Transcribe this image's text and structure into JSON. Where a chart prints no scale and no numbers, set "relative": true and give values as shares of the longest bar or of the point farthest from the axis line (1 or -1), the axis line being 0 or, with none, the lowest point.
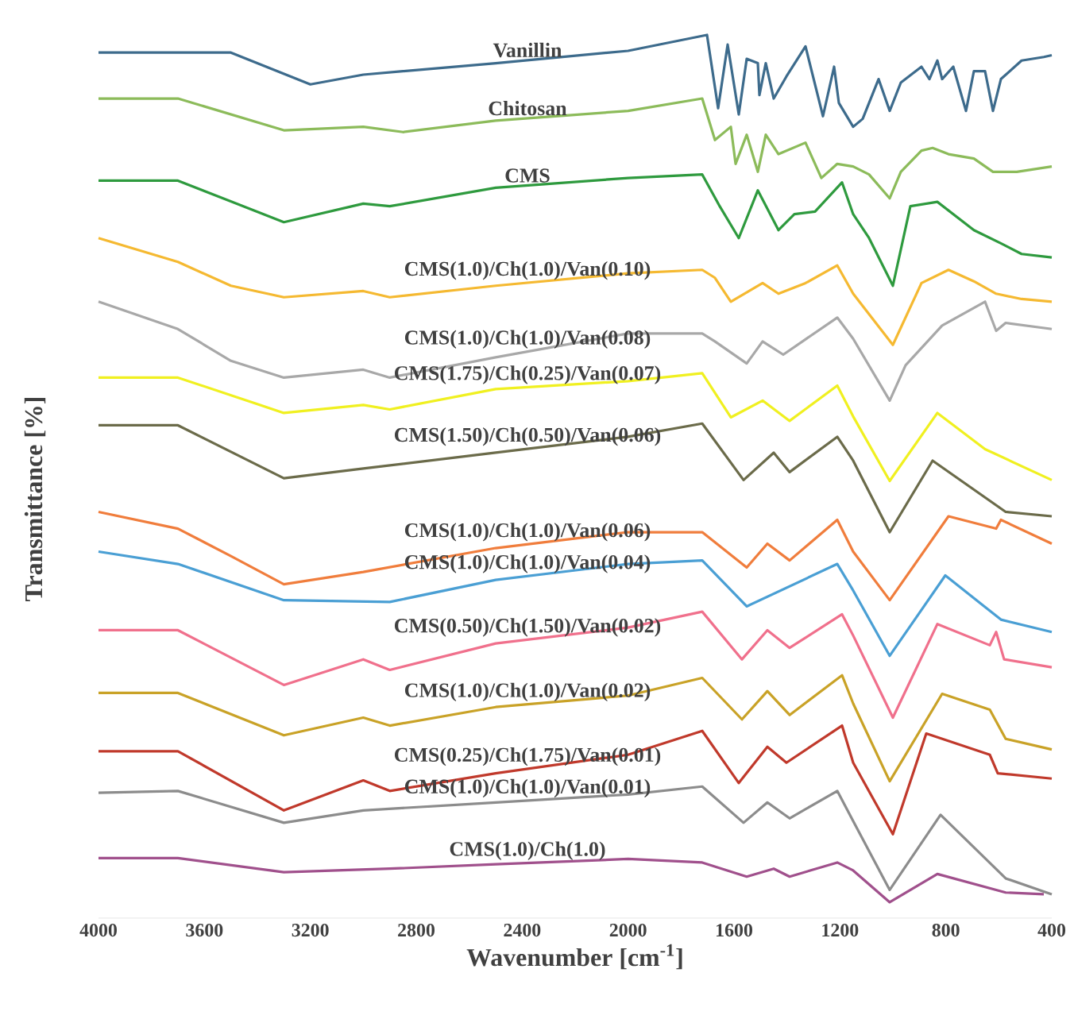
{
  "chart_data": {
    "type": "line",
    "relative": true,
    "xlabel": "Wavenumber [cm$^{-1}$]",
    "ylabel": "Transmittance [%]",
    "xlim": [
      4000,
      400
    ],
    "xticks": [
      4000,
      3600,
      3200,
      2800,
      2400,
      2000,
      1600,
      1200,
      800,
      400
    ],
    "series": [
      {
        "name": "Vanillin",
        "color": "#3d6b8c",
        "x": [
          4000,
          3500,
          3200,
          3000,
          2500,
          2000,
          1702,
          1660,
          1624,
          1582,
          1552,
          1510,
          1504,
          1480,
          1450,
          1402,
          1330,
          1264,
          1222,
          1204,
          1150,
          1114,
          1054,
          1012,
          970,
          892,
          862,
          832,
          814,
          772,
          724,
          694,
          652,
          622,
          592,
          514,
          430,
          400
        ],
        "values": [
          0.98,
          0.98,
          0.944,
          0.955,
          0.968,
          0.982,
          1.0,
          0.917,
          0.989,
          0.91,
          0.973,
          0.968,
          0.932,
          0.968,
          0.928,
          0.953,
          0.987,
          0.908,
          0.964,
          0.923,
          0.896,
          0.905,
          0.95,
          0.914,
          0.946,
          0.964,
          0.95,
          0.971,
          0.95,
          0.964,
          0.914,
          0.959,
          0.959,
          0.914,
          0.95,
          0.971,
          0.975,
          0.977
        ]
      },
      {
        "name": "Chitosan",
        "color": "#8cbb5a",
        "x": [
          4000,
          3700,
          3300,
          3000,
          2850,
          2500,
          2000,
          1720,
          1672,
          1612,
          1594,
          1552,
          1510,
          1480,
          1432,
          1330,
          1270,
          1210,
          1150,
          1090,
          1012,
          970,
          892,
          850,
          790,
          694,
          622,
          532,
          400
        ],
        "values": [
          0.928,
          0.928,
          0.892,
          0.896,
          0.89,
          0.903,
          0.914,
          0.928,
          0.881,
          0.896,
          0.854,
          0.887,
          0.845,
          0.887,
          0.865,
          0.878,
          0.838,
          0.854,
          0.851,
          0.842,
          0.815,
          0.845,
          0.869,
          0.872,
          0.865,
          0.86,
          0.845,
          0.845,
          0.851
        ]
      },
      {
        "name": "CMS",
        "color": "#2e9a3e",
        "x": [
          4000,
          3700,
          3300,
          3000,
          2900,
          2500,
          2000,
          1720,
          1654,
          1582,
          1510,
          1432,
          1372,
          1294,
          1192,
          1150,
          1090,
          1000,
          934,
          832,
          694,
          592,
          514,
          400
        ],
        "values": [
          0.835,
          0.835,
          0.788,
          0.809,
          0.806,
          0.827,
          0.838,
          0.842,
          0.806,
          0.77,
          0.824,
          0.779,
          0.797,
          0.8,
          0.833,
          0.797,
          0.77,
          0.716,
          0.806,
          0.811,
          0.779,
          0.764,
          0.752,
          0.748
        ]
      },
      {
        "name": "CMS(1.0)/Ch(1.0)/Van(0.10)",
        "color": "#f5b931",
        "x": [
          4000,
          3700,
          3500,
          3300,
          3000,
          2900,
          2500,
          2000,
          1720,
          1672,
          1612,
          1492,
          1432,
          1330,
          1210,
          1150,
          1000,
          892,
          790,
          694,
          610,
          514,
          400
        ],
        "values": [
          0.77,
          0.743,
          0.716,
          0.703,
          0.71,
          0.703,
          0.716,
          0.73,
          0.734,
          0.725,
          0.698,
          0.719,
          0.707,
          0.719,
          0.739,
          0.707,
          0.649,
          0.719,
          0.734,
          0.721,
          0.707,
          0.701,
          0.698
        ]
      },
      {
        "name": "CMS(1.0)/Ch(1.0)/Van(0.08)",
        "color": "#a8a8a8",
        "x": [
          4000,
          3700,
          3500,
          3300,
          3000,
          2900,
          2500,
          2000,
          1720,
          1672,
          1552,
          1492,
          1414,
          1210,
          1150,
          1012,
          952,
          814,
          652,
          610,
          574,
          400
        ],
        "values": [
          0.698,
          0.667,
          0.631,
          0.612,
          0.621,
          0.612,
          0.635,
          0.662,
          0.662,
          0.653,
          0.628,
          0.653,
          0.638,
          0.68,
          0.656,
          0.586,
          0.626,
          0.671,
          0.698,
          0.665,
          0.674,
          0.667
        ]
      },
      {
        "name": "CMS(1.75)/Ch(0.25)/Van(0.07)",
        "color": "#f0f020",
        "x": [
          4000,
          3700,
          3300,
          3000,
          2900,
          2500,
          2000,
          1720,
          1612,
          1492,
          1390,
          1210,
          1150,
          1012,
          832,
          652,
          400
        ],
        "values": [
          0.612,
          0.612,
          0.572,
          0.581,
          0.576,
          0.599,
          0.608,
          0.617,
          0.567,
          0.586,
          0.563,
          0.603,
          0.568,
          0.495,
          0.572,
          0.531,
          0.496
        ]
      },
      {
        "name": "CMS(1.50)/Ch(0.50)/Van(0.06)",
        "color": "#6b6b4a",
        "x": [
          4000,
          3700,
          3300,
          3000,
          2500,
          2000,
          1720,
          1564,
          1450,
          1390,
          1210,
          1150,
          1012,
          850,
          574,
          400
        ],
        "values": [
          0.558,
          0.558,
          0.498,
          0.509,
          0.527,
          0.545,
          0.56,
          0.496,
          0.527,
          0.505,
          0.545,
          0.518,
          0.437,
          0.518,
          0.46,
          0.455
        ]
      },
      {
        "name": "CMS(1.0)/Ch(1.0)/Van(0.06)",
        "color": "#f07d3c",
        "x": [
          4000,
          3700,
          3500,
          3300,
          3000,
          2500,
          2000,
          1720,
          1552,
          1474,
          1390,
          1210,
          1150,
          1012,
          790,
          610,
          592,
          400
        ],
        "values": [
          0.46,
          0.441,
          0.41,
          0.378,
          0.392,
          0.419,
          0.437,
          0.437,
          0.397,
          0.424,
          0.405,
          0.451,
          0.415,
          0.36,
          0.455,
          0.441,
          0.451,
          0.424
        ]
      },
      {
        "name": "CMS(1.0)/Ch(1.0)/Van(0.04)",
        "color": "#4a9fd4",
        "x": [
          4000,
          3700,
          3300,
          2900,
          2500,
          2000,
          1720,
          1552,
          1210,
          1150,
          1012,
          802,
          592,
          400
        ],
        "values": [
          0.415,
          0.401,
          0.36,
          0.358,
          0.383,
          0.401,
          0.405,
          0.353,
          0.401,
          0.371,
          0.297,
          0.388,
          0.338,
          0.324
        ]
      },
      {
        "name": "CMS(0.50)/Ch(1.50)/Van(0.02)",
        "color": "#f0708c",
        "x": [
          4000,
          3700,
          3300,
          3000,
          2900,
          2500,
          2000,
          1720,
          1570,
          1474,
          1390,
          1192,
          1150,
          1000,
          832,
          634,
          610,
          580,
          400
        ],
        "values": [
          0.326,
          0.326,
          0.264,
          0.293,
          0.281,
          0.311,
          0.329,
          0.347,
          0.293,
          0.326,
          0.306,
          0.344,
          0.32,
          0.227,
          0.333,
          0.309,
          0.324,
          0.293,
          0.284
        ]
      },
      {
        "name": "CMS(1.0)/Ch(1.0)/Van(0.02)",
        "color": "#c9a227",
        "x": [
          4000,
          3700,
          3300,
          3000,
          2900,
          2500,
          2000,
          1720,
          1570,
          1474,
          1390,
          1192,
          1150,
          1012,
          814,
          634,
          574,
          400
        ],
        "values": [
          0.255,
          0.255,
          0.207,
          0.227,
          0.218,
          0.239,
          0.252,
          0.272,
          0.225,
          0.257,
          0.23,
          0.275,
          0.243,
          0.155,
          0.254,
          0.236,
          0.203,
          0.191
        ]
      },
      {
        "name": "CMS(0.25)/Ch(1.75)/Van(0.01)",
        "color": "#c0392b",
        "x": [
          4000,
          3700,
          3300,
          3000,
          2900,
          2500,
          2000,
          1720,
          1582,
          1474,
          1402,
          1192,
          1150,
          1000,
          874,
          634,
          604,
          400
        ],
        "values": [
          0.189,
          0.189,
          0.122,
          0.156,
          0.144,
          0.164,
          0.185,
          0.212,
          0.153,
          0.194,
          0.176,
          0.218,
          0.176,
          0.095,
          0.209,
          0.185,
          0.164,
          0.158
        ]
      },
      {
        "name": "CMS(1.0)/Ch(1.0)/Van(0.01)",
        "color": "#8c8c8c",
        "x": [
          4000,
          3700,
          3300,
          3000,
          2500,
          2000,
          1720,
          1564,
          1474,
          1390,
          1210,
          1150,
          1012,
          820,
          574,
          400
        ],
        "values": [
          0.142,
          0.144,
          0.108,
          0.122,
          0.131,
          0.14,
          0.149,
          0.108,
          0.131,
          0.113,
          0.144,
          0.11,
          0.032,
          0.117,
          0.045,
          0.027
        ]
      },
      {
        "name": "CMS(1.0)/Ch(1.0)",
        "color": "#a0508c",
        "x": [
          4000,
          3700,
          3300,
          2900,
          2500,
          2000,
          1720,
          1552,
          1450,
          1390,
          1210,
          1150,
          1012,
          832,
          574,
          430
        ],
        "values": [
          0.068,
          0.068,
          0.052,
          0.056,
          0.061,
          0.067,
          0.063,
          0.047,
          0.056,
          0.047,
          0.063,
          0.054,
          0.018,
          0.05,
          0.029,
          0.027
        ]
      }
    ]
  }
}
